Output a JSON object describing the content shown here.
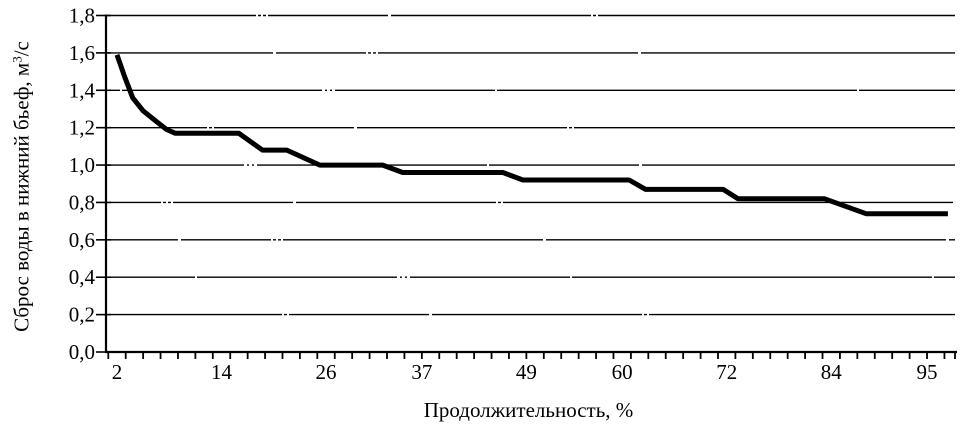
{
  "chart_data": {
    "type": "line",
    "title": "",
    "xlabel": "Продолжительность, %",
    "ylabel": "Сброс воды в нижний бьеф, м³/с",
    "ylabel_parts": {
      "main": "Сброс воды в нижний бьеф, м",
      "sup": "3",
      "tail": "/с"
    },
    "xlim": [
      1,
      98.3
    ],
    "ylim": [
      0,
      1.8
    ],
    "grid": "horizontal-dashed",
    "legend_position": "none",
    "background_color": "#ffffff",
    "line_color": "#000000",
    "axis_color": "#000000",
    "y_ticks": [
      {
        "value": 1.8,
        "label": "1,8"
      },
      {
        "value": 1.6,
        "label": "1,6"
      },
      {
        "value": 1.4,
        "label": "1,4"
      },
      {
        "value": 1.2,
        "label": "1,2"
      },
      {
        "value": 1.0,
        "label": "1,0"
      },
      {
        "value": 0.8,
        "label": "0,8"
      },
      {
        "value": 0.6,
        "label": "0,6"
      },
      {
        "value": 0.4,
        "label": "0,4"
      },
      {
        "value": 0.2,
        "label": "0,2"
      },
      {
        "value": 0.0,
        "label": "0,0"
      }
    ],
    "x_ticks": [
      {
        "value": 2,
        "label": "2"
      },
      {
        "value": 14,
        "label": "14"
      },
      {
        "value": 26,
        "label": "26"
      },
      {
        "value": 37,
        "label": "37"
      },
      {
        "value": 49,
        "label": "49"
      },
      {
        "value": 60,
        "label": "60"
      },
      {
        "value": 72,
        "label": "72"
      },
      {
        "value": 84,
        "label": "84"
      },
      {
        "value": 95,
        "label": "95"
      }
    ],
    "x_minor_ticks": {
      "start": 1,
      "end": 97,
      "step": 2
    },
    "series": [
      {
        "name": "Сброс воды в нижний бьеф",
        "points": [
          [
            2.0,
            1.59
          ],
          [
            2.9,
            1.47
          ],
          [
            3.8,
            1.36
          ],
          [
            5.0,
            1.29
          ],
          [
            6.6,
            1.23
          ],
          [
            7.7,
            1.19
          ],
          [
            8.7,
            1.17
          ],
          [
            16.0,
            1.17
          ],
          [
            18.7,
            1.08
          ],
          [
            21.5,
            1.08
          ],
          [
            25.3,
            1.0
          ],
          [
            32.5,
            1.0
          ],
          [
            34.8,
            0.96
          ],
          [
            46.3,
            0.96
          ],
          [
            48.6,
            0.92
          ],
          [
            60.8,
            0.92
          ],
          [
            62.7,
            0.87
          ],
          [
            71.6,
            0.87
          ],
          [
            73.3,
            0.82
          ],
          [
            83.2,
            0.82
          ],
          [
            88.0,
            0.74
          ],
          [
            97.4,
            0.74
          ]
        ]
      }
    ]
  }
}
